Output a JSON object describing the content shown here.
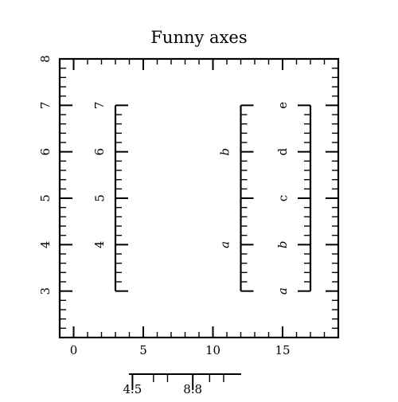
{
  "chart_data": {
    "type": "axes",
    "title": "Funny axes",
    "grid": false,
    "xlim": [
      -1,
      19
    ],
    "ylim": [
      2,
      8
    ],
    "x_ticks": [
      0,
      5,
      10,
      15
    ],
    "x_tick_labels": [
      "0",
      "5",
      "10",
      "15"
    ],
    "y_ticks": [
      3,
      4,
      5,
      6,
      7,
      8
    ],
    "y_tick_labels": [
      "3",
      "4",
      "5",
      "6",
      "7",
      "8"
    ],
    "inner_axes": [
      {
        "name": "numeric-axis",
        "x": 3,
        "y_range": [
          3,
          7
        ],
        "side": "right",
        "ticks": [
          3,
          4,
          5,
          6,
          7
        ],
        "labels": [
          "",
          "4",
          "5",
          "6",
          "7"
        ]
      },
      {
        "name": "italic-axis",
        "x": 12,
        "y_range": [
          3,
          7
        ],
        "side": "right",
        "ticks": [
          3,
          4,
          5,
          6,
          7
        ],
        "labels": [
          "",
          "a",
          "",
          "b",
          ""
        ],
        "italic": true
      },
      {
        "name": "letter-axis",
        "x": 17,
        "y_range": [
          3,
          7
        ],
        "side": "left",
        "ticks": [
          3,
          4,
          5,
          6,
          7
        ],
        "labels": [
          "a",
          "b",
          "c",
          "d",
          "e"
        ],
        "italic_labels": [
          "a",
          "b"
        ]
      }
    ],
    "bottom_axis": {
      "range": [
        4.25,
        12.25
      ],
      "ticks": [
        4.5,
        8.8
      ],
      "tick_labels": [
        "4.5",
        "8.8"
      ],
      "minor_ticks": [
        6,
        7,
        10,
        11
      ]
    }
  }
}
